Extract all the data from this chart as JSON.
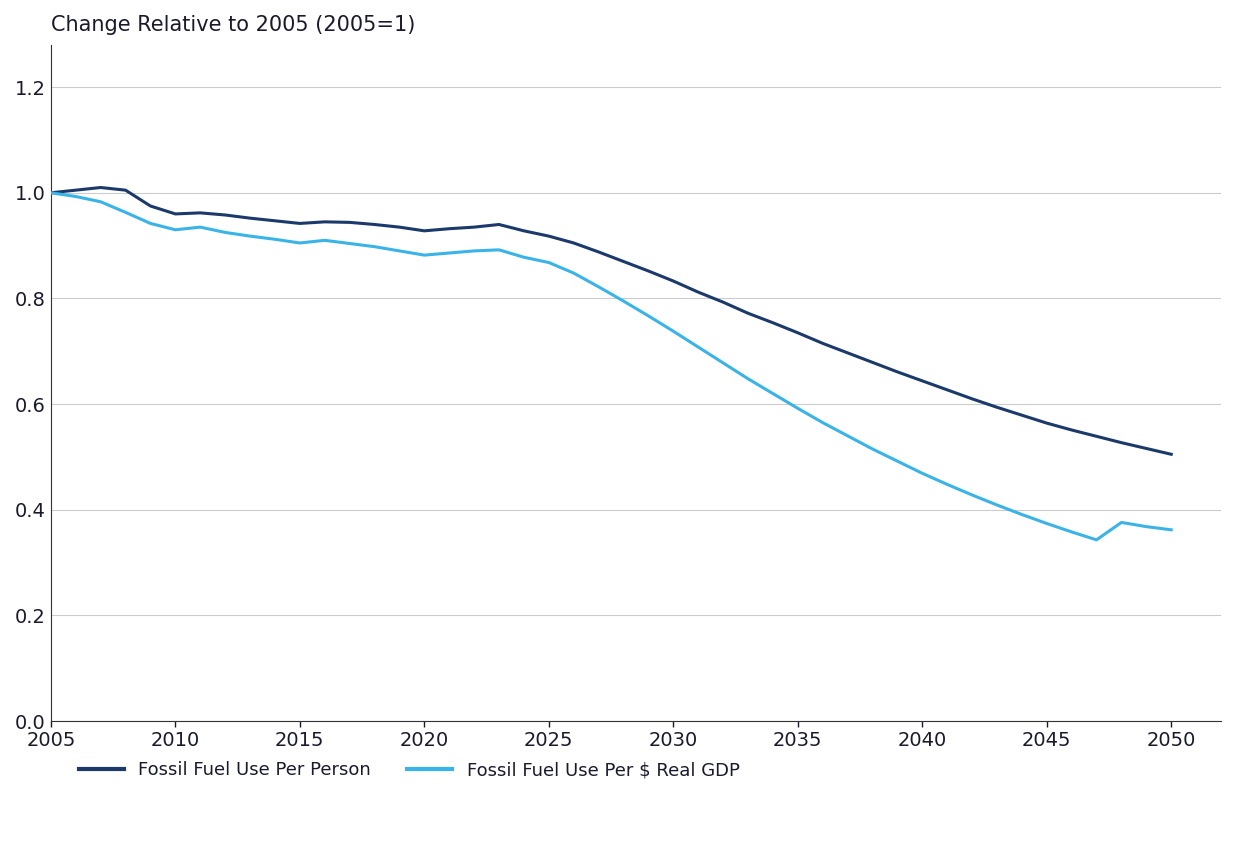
{
  "title": "Change Relative to 2005 (2005=1)",
  "background_color": "#ffffff",
  "plot_bg_color": "#ffffff",
  "text_color": "#1a1a2e",
  "grid_color": "#cccccc",
  "spine_color": "#333333",
  "xlim": [
    2005,
    2052
  ],
  "ylim": [
    0.0,
    1.28
  ],
  "yticks": [
    0.0,
    0.2,
    0.4,
    0.6,
    0.8,
    1.0,
    1.2
  ],
  "xticks": [
    2005,
    2010,
    2015,
    2020,
    2025,
    2030,
    2035,
    2040,
    2045,
    2050
  ],
  "line_per_person": {
    "color": "#1b3a6b",
    "label": "Fossil Fuel Use Per Person",
    "x": [
      2005,
      2006,
      2007,
      2008,
      2009,
      2010,
      2011,
      2012,
      2013,
      2014,
      2015,
      2016,
      2017,
      2018,
      2019,
      2020,
      2021,
      2022,
      2023,
      2024,
      2025,
      2026,
      2027,
      2028,
      2029,
      2030,
      2031,
      2032,
      2033,
      2034,
      2035,
      2036,
      2037,
      2038,
      2039,
      2040,
      2041,
      2042,
      2043,
      2044,
      2045,
      2046,
      2047,
      2048,
      2049,
      2050
    ],
    "y": [
      1.0,
      1.005,
      1.01,
      1.005,
      0.975,
      0.96,
      0.962,
      0.958,
      0.952,
      0.947,
      0.942,
      0.945,
      0.944,
      0.94,
      0.935,
      0.928,
      0.932,
      0.935,
      0.94,
      0.928,
      0.918,
      0.905,
      0.888,
      0.87,
      0.852,
      0.833,
      0.812,
      0.793,
      0.772,
      0.754,
      0.735,
      0.715,
      0.697,
      0.679,
      0.661,
      0.644,
      0.627,
      0.61,
      0.594,
      0.579,
      0.564,
      0.551,
      0.539,
      0.527,
      0.516,
      0.505
    ]
  },
  "line_per_gdp": {
    "color": "#3ab4e8",
    "label": "Fossil Fuel Use Per $ Real GDP",
    "x": [
      2005,
      2006,
      2007,
      2008,
      2009,
      2010,
      2011,
      2012,
      2013,
      2014,
      2015,
      2016,
      2017,
      2018,
      2019,
      2020,
      2021,
      2022,
      2023,
      2024,
      2025,
      2026,
      2027,
      2028,
      2029,
      2030,
      2031,
      2032,
      2033,
      2034,
      2035,
      2036,
      2037,
      2038,
      2039,
      2040,
      2041,
      2042,
      2043,
      2044,
      2045,
      2046,
      2047,
      2048,
      2049,
      2050
    ],
    "y": [
      1.0,
      0.993,
      0.983,
      0.963,
      0.942,
      0.93,
      0.935,
      0.925,
      0.918,
      0.912,
      0.905,
      0.91,
      0.904,
      0.898,
      0.89,
      0.882,
      0.886,
      0.89,
      0.892,
      0.878,
      0.868,
      0.848,
      0.822,
      0.795,
      0.767,
      0.738,
      0.708,
      0.678,
      0.648,
      0.62,
      0.592,
      0.565,
      0.54,
      0.515,
      0.492,
      0.469,
      0.448,
      0.428,
      0.409,
      0.391,
      0.374,
      0.358,
      0.343,
      0.376,
      0.368,
      0.362
    ]
  },
  "title_fontsize": 15,
  "tick_fontsize": 14,
  "legend_fontsize": 13,
  "linewidth": 2.2
}
